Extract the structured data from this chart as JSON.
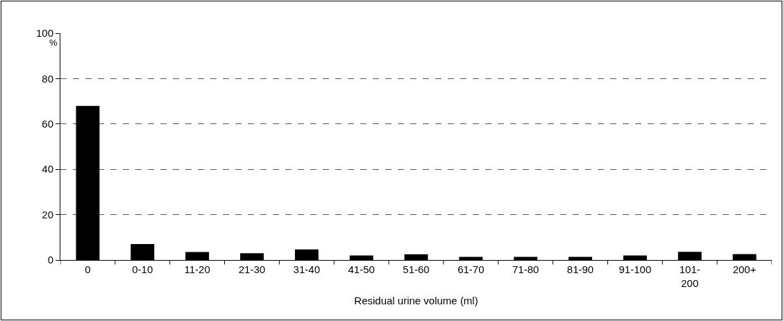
{
  "chart_data": {
    "type": "bar",
    "xlabel": "Residual urine volume (ml)",
    "ylabel": "%",
    "categories": [
      "0",
      "0-10",
      "11-20",
      "21-30",
      "31-40",
      "41-50",
      "51-60",
      "61-70",
      "71-80",
      "81-90",
      "91-100",
      "101-200",
      "200+"
    ],
    "values": [
      68,
      7,
      3.5,
      3,
      4.7,
      2,
      2.5,
      1.4,
      1.4,
      1.4,
      2,
      3.6,
      2.6
    ],
    "color": "#000000",
    "ylim": [
      0,
      100
    ],
    "yticks": [
      0,
      20,
      40,
      60,
      80,
      100
    ],
    "grid": "y"
  }
}
